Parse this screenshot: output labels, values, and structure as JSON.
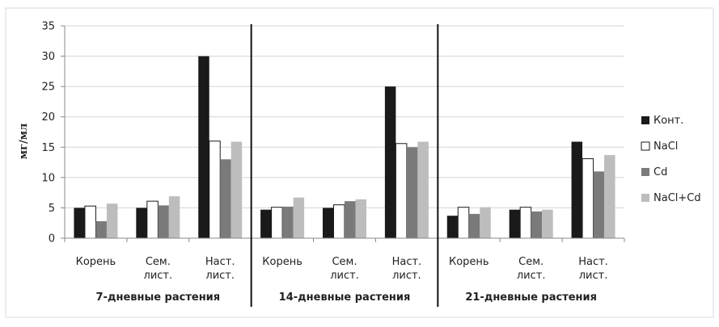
{
  "chart_data": {
    "type": "bar",
    "ylabel": "мг/мл",
    "ylim": [
      0,
      35
    ],
    "yticks": [
      0,
      5,
      10,
      15,
      20,
      25,
      30,
      35
    ],
    "grid": true,
    "legend_position": "right",
    "groups": [
      {
        "label": "7-дневные растения",
        "categories": [
          [
            "Корень"
          ],
          [
            "Сем.",
            "лист."
          ],
          [
            "Наст.",
            "лист."
          ]
        ]
      },
      {
        "label": "14-дневные растения",
        "categories": [
          [
            "Корень"
          ],
          [
            "Сем.",
            "лист."
          ],
          [
            "Наст.",
            "лист."
          ]
        ]
      },
      {
        "label": "21-дневные растения",
        "categories": [
          [
            "Корень"
          ],
          [
            "Сем.",
            "лист."
          ],
          [
            "Наст.",
            "лист."
          ]
        ]
      }
    ],
    "series": [
      {
        "name": "Конт.",
        "color": "#1a1a1a",
        "values": [
          5.0,
          5.0,
          30.0,
          4.7,
          5.0,
          25.0,
          3.7,
          4.7,
          15.9
        ]
      },
      {
        "name": "NaCl",
        "color": "#ffffff",
        "values": [
          5.3,
          6.1,
          16.0,
          5.1,
          5.5,
          15.6,
          5.1,
          5.1,
          13.1
        ]
      },
      {
        "name": "Cd",
        "color": "#7a7a7a",
        "values": [
          2.8,
          5.4,
          13.0,
          5.2,
          6.1,
          15.0,
          4.0,
          4.4,
          11.0
        ]
      },
      {
        "name": "NaCl+Cd",
        "color": "#bdbdbd",
        "values": [
          5.7,
          6.9,
          15.9,
          6.7,
          6.4,
          15.9,
          5.1,
          4.7,
          13.7
        ]
      }
    ]
  }
}
